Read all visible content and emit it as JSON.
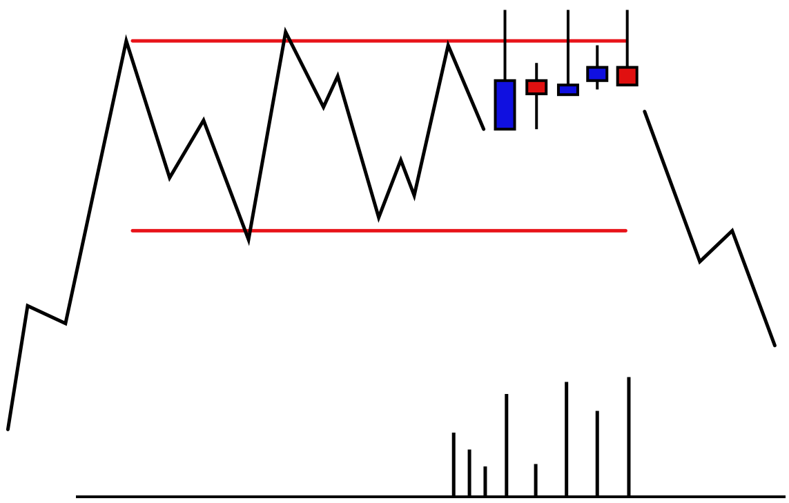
{
  "chart_data": {
    "type": "line",
    "title": "",
    "xlabel": "",
    "ylabel": "",
    "grid": false,
    "legend": "none",
    "ylim": [
      0,
      100
    ],
    "xlim": [
      0,
      100
    ],
    "colors": {
      "line": "#000000",
      "level": "#e8141a",
      "bullish": "#1010e0",
      "bearish": "#e01010",
      "candle_outline": "#000000",
      "volume": "#000000"
    },
    "price_line_before": [
      {
        "x": 1.0,
        "y": 9
      },
      {
        "x": 3.5,
        "y": 37
      },
      {
        "x": 8.3,
        "y": 33
      },
      {
        "x": 16.0,
        "y": 97
      },
      {
        "x": 21.5,
        "y": 66
      },
      {
        "x": 25.8,
        "y": 79
      },
      {
        "x": 31.5,
        "y": 52
      },
      {
        "x": 36.2,
        "y": 99
      },
      {
        "x": 41.0,
        "y": 82
      },
      {
        "x": 42.8,
        "y": 89
      },
      {
        "x": 48.0,
        "y": 57
      },
      {
        "x": 50.8,
        "y": 70
      },
      {
        "x": 52.5,
        "y": 62
      },
      {
        "x": 56.8,
        "y": 96
      },
      {
        "x": 61.3,
        "y": 77
      }
    ],
    "price_line_after": [
      {
        "x": 81.7,
        "y": 81
      },
      {
        "x": 88.7,
        "y": 47
      },
      {
        "x": 92.8,
        "y": 54
      },
      {
        "x": 98.2,
        "y": 28
      }
    ],
    "levels": [
      {
        "name": "resistance",
        "y": 97,
        "x_start": 16.8,
        "x_end": 79.3
      },
      {
        "name": "support",
        "y": 54,
        "x_start": 16.8,
        "x_end": 79.3
      }
    ],
    "candles": [
      {
        "x": 64.0,
        "open": 88,
        "close": 77,
        "high": 104,
        "low": 77,
        "direction": "bearish-blue"
      },
      {
        "x": 68.0,
        "open": 88,
        "close": 85,
        "high": 92,
        "low": 77,
        "direction": "red"
      },
      {
        "x": 72.0,
        "open": 87,
        "close": 85,
        "high": 104,
        "low": 85,
        "direction": "blue"
      },
      {
        "x": 75.7,
        "open": 88,
        "close": 91,
        "high": 96,
        "low": 86,
        "direction": "blue"
      },
      {
        "x": 79.5,
        "open": 87,
        "close": 91,
        "high": 104,
        "low": 87,
        "direction": "red"
      }
    ],
    "volume": [
      {
        "x": 57.5,
        "value": 13
      },
      {
        "x": 59.5,
        "value": 9.5
      },
      {
        "x": 61.5,
        "value": 6
      },
      {
        "x": 64.2,
        "value": 21
      },
      {
        "x": 67.9,
        "value": 6.5
      },
      {
        "x": 71.8,
        "value": 23.5
      },
      {
        "x": 75.7,
        "value": 17.5
      },
      {
        "x": 79.7,
        "value": 24.5
      }
    ]
  }
}
